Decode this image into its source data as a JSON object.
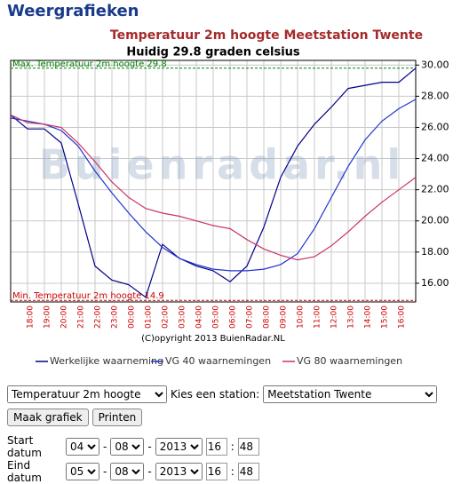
{
  "header": {
    "title": "Weergrafieken"
  },
  "chart_data": {
    "type": "line",
    "title": "Temperatuur 2m hoogte Meetstation Twente",
    "subtitle": "Huidig 29.8 graden celsius",
    "watermark": "Buienradar.nl",
    "copyright": "(C)opyright 2013 BuienRadar.NL",
    "categories": [
      null,
      "18:00",
      "19:00",
      "20:00",
      "21:00",
      "22:00",
      "23:00",
      "00:00",
      "01:00",
      "02:00",
      "03:00",
      "04:00",
      "05:00",
      "06:00",
      "07:00",
      "08:00",
      "09:00",
      "10:00",
      "11:00",
      "12:00",
      "13:00",
      "14:00",
      "15:00",
      "16:00",
      null
    ],
    "series": [
      {
        "name": "Werkelijke waarneming",
        "color": "#00008b",
        "values": [
          26.8,
          25.9,
          25.9,
          25.0,
          21.1,
          17.1,
          16.2,
          15.9,
          15.1,
          18.5,
          17.6,
          17.1,
          16.8,
          16.1,
          17.1,
          19.6,
          22.8,
          24.8,
          26.2,
          27.3,
          28.5,
          28.7,
          28.9,
          28.9,
          29.8
        ]
      },
      {
        "name": "VG 40 waarnemingen",
        "color": "#2233cc",
        "values": [
          26.6,
          26.4,
          26.2,
          25.8,
          24.8,
          23.2,
          21.8,
          20.5,
          19.3,
          18.3,
          17.6,
          17.2,
          16.9,
          16.8,
          16.8,
          16.9,
          17.2,
          17.9,
          19.5,
          21.5,
          23.5,
          25.2,
          26.4,
          27.2,
          27.8
        ]
      },
      {
        "name": "VG 80 waarnemingen",
        "color": "#cc3366",
        "values": [
          26.8,
          26.3,
          26.2,
          26.0,
          25.0,
          23.8,
          22.5,
          21.5,
          20.8,
          20.5,
          20.3,
          20.0,
          19.7,
          19.5,
          18.8,
          18.2,
          17.8,
          17.5,
          17.7,
          18.4,
          19.3,
          20.3,
          21.2,
          22.0,
          22.8
        ]
      }
    ],
    "max_line": {
      "value": 29.8,
      "label": "Max. Temperatuur 2m hoogte 29.8",
      "color": "#008000"
    },
    "min_line": {
      "value": 14.9,
      "label": "Min. Temperatuur 2m hoogte 14.9",
      "color": "#cc0000"
    },
    "ylim": [
      14.8,
      30.3
    ],
    "yticks": [
      {
        "value": 16,
        "label": "16.00"
      },
      {
        "value": 18,
        "label": "18.00"
      },
      {
        "value": 20,
        "label": "20.00"
      },
      {
        "value": 22,
        "label": "22.00"
      },
      {
        "value": 24,
        "label": "24.00"
      },
      {
        "value": 26,
        "label": "26.00"
      },
      {
        "value": 28,
        "label": "28.00"
      },
      {
        "value": 30,
        "label": "30.00"
      }
    ],
    "grid": true
  },
  "form": {
    "parameter": "Temperatuur 2m hoogte",
    "station_label": "Kies een station:",
    "station": "Meetstation Twente",
    "make_button": "Maak grafiek",
    "print_button": "Printen",
    "date_sep": "-",
    "time_sep": ":",
    "start": {
      "label": "Start datum",
      "day": "04",
      "month": "08",
      "year": "2013",
      "hour": "16",
      "minute": "48"
    },
    "end": {
      "label": "Eind datum",
      "day": "05",
      "month": "08",
      "year": "2013",
      "hour": "16",
      "minute": "48"
    }
  }
}
